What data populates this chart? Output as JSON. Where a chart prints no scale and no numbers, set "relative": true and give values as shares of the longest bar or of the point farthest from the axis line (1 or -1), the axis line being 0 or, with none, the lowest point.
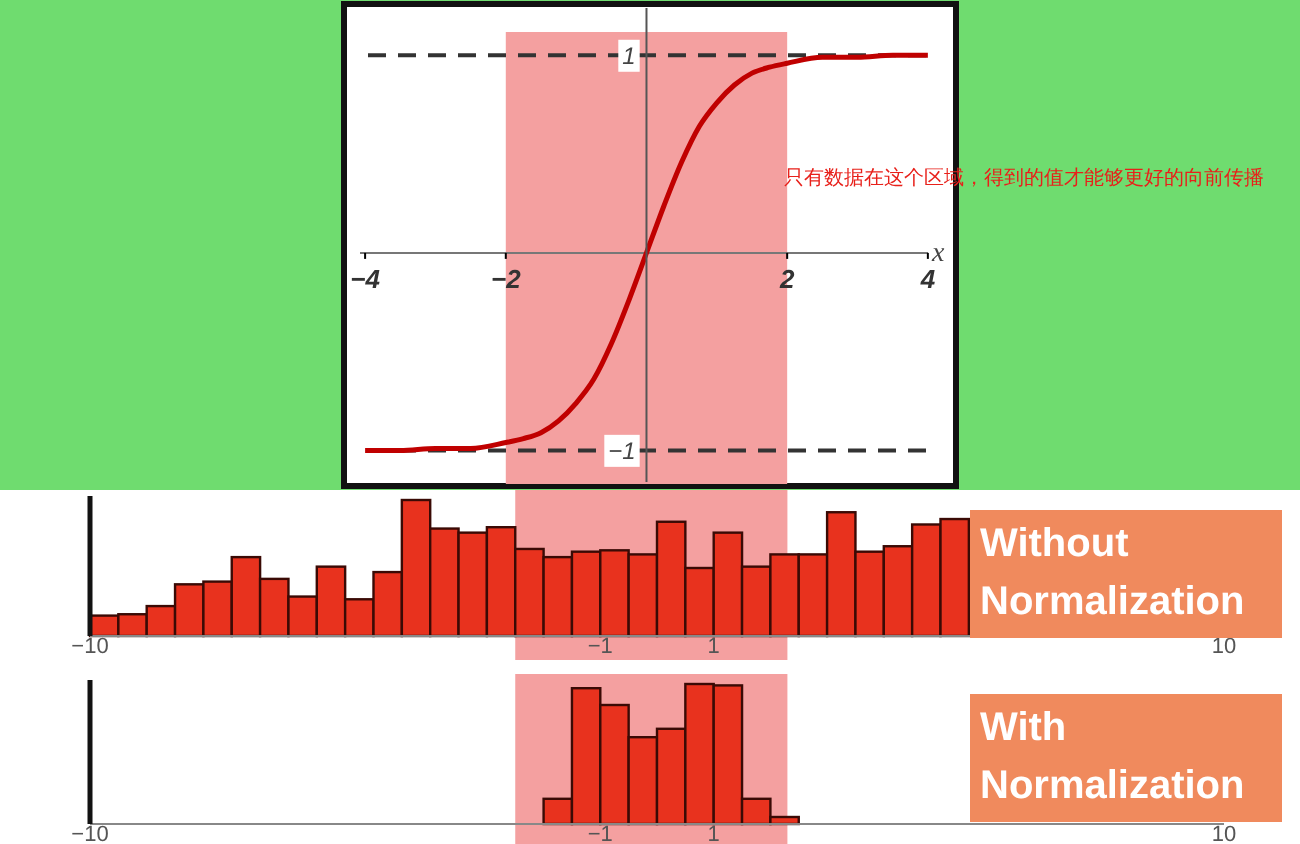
{
  "chart_data": [
    {
      "type": "line",
      "xlabel": "x",
      "xlim": [
        -4.3,
        4.4
      ],
      "ylim": [
        -1.18,
        1.26
      ],
      "xticks": [
        -4,
        -2,
        2,
        4
      ],
      "yticks": [
        -1,
        1
      ],
      "series": [
        {
          "color": "#c00000",
          "x": [
            -4,
            -3.5,
            -3,
            -2.5,
            -2,
            -1.75,
            -1.5,
            -1.25,
            -1,
            -0.75,
            -0.5,
            -0.25,
            0,
            0.25,
            0.5,
            0.75,
            1,
            1.25,
            1.5,
            1.75,
            2,
            2.5,
            3,
            3.5,
            4
          ],
          "values": [
            -1,
            -1,
            -0.99,
            -0.99,
            -0.96,
            -0.94,
            -0.91,
            -0.85,
            -0.76,
            -0.64,
            -0.46,
            -0.24,
            0,
            0.24,
            0.46,
            0.64,
            0.76,
            0.85,
            0.91,
            0.94,
            0.96,
            0.99,
            0.99,
            1,
            1
          ]
        }
      ],
      "ref_lines": [
        {
          "axis": "y",
          "value": 1,
          "color": "#333333",
          "line_style": "dashed"
        },
        {
          "axis": "y",
          "value": -1,
          "color": "#333333",
          "line_style": "dashed"
        }
      ],
      "bands": [
        {
          "axis": "x",
          "from": -2,
          "to": 2,
          "color": "#f4a0a0"
        }
      ],
      "annotations": [
        "只有数据在这个区域，得到的值才能够更好的向前传播"
      ]
    },
    {
      "type": "bar",
      "title": "Without Normalization",
      "relative": true,
      "color": "#e8321e",
      "xlim": [
        -10,
        10
      ],
      "xticks": [
        -10,
        -1,
        1,
        10
      ],
      "tick_labels": "x",
      "x": [
        -9.75,
        -9.25,
        -8.75,
        -8.25,
        -7.75,
        -7.25,
        -6.75,
        -6.25,
        -5.75,
        -5.25,
        -4.75,
        -4.25,
        -3.75,
        -3.25,
        -2.75,
        -2.25,
        -1.75,
        -1.25,
        -0.75,
        -0.25,
        0.25,
        0.75,
        1.25,
        1.75,
        2.25,
        2.75,
        3.25,
        3.75,
        4.25,
        4.75,
        5.25
      ],
      "values": [
        0.15,
        0.16,
        0.22,
        0.38,
        0.4,
        0.58,
        0.42,
        0.29,
        0.51,
        0.27,
        0.47,
        1,
        0.79,
        0.76,
        0.8,
        0.64,
        0.58,
        0.62,
        0.63,
        0.6,
        0.84,
        0.5,
        0.76,
        0.51,
        0.6,
        0.6,
        0.91,
        0.62,
        0.66,
        0.82,
        0.86
      ],
      "bands": [
        {
          "axis": "x",
          "from": -2.5,
          "to": 2.3,
          "color": "#f4a0a0"
        }
      ]
    },
    {
      "type": "bar",
      "title": "With Normalization",
      "relative": true,
      "color": "#e8321e",
      "xlim": [
        -10,
        10
      ],
      "xticks": [
        -10,
        -1,
        1,
        10
      ],
      "tick_labels": "x",
      "x": [
        -1.75,
        -1.25,
        -0.75,
        -0.25,
        0.25,
        0.75,
        1.25,
        1.75,
        2.25
      ],
      "values": [
        0.18,
        0.97,
        0.85,
        0.62,
        0.68,
        1,
        0.99,
        0.18,
        0.05
      ],
      "bands": [
        {
          "axis": "x",
          "from": -2.5,
          "to": 2.3,
          "color": "#f4a0a0"
        }
      ]
    }
  ]
}
